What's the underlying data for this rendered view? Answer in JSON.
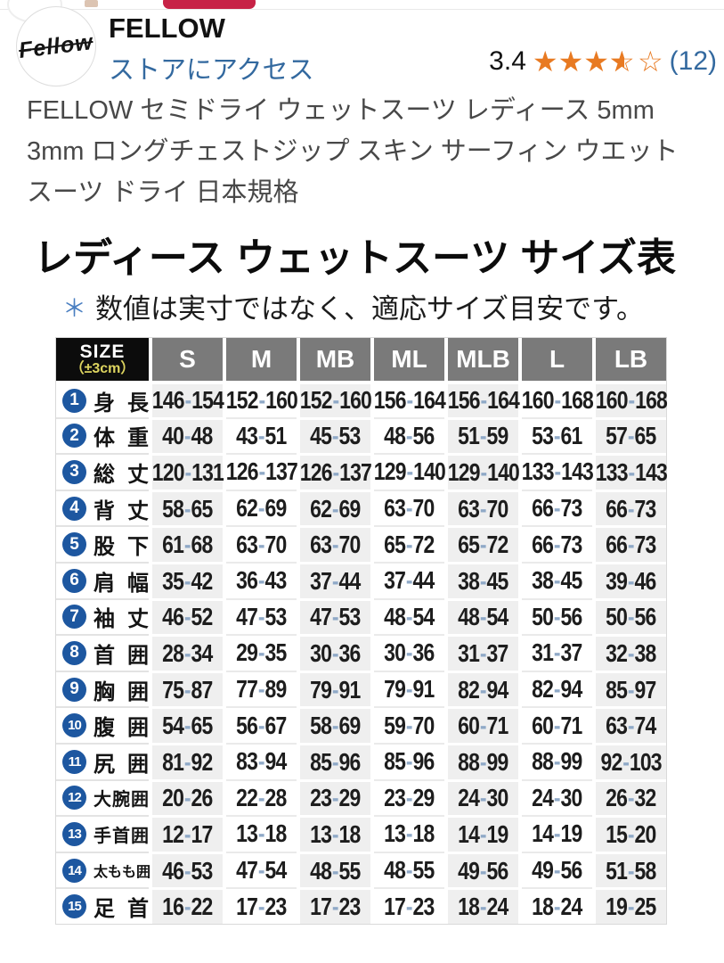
{
  "top_bar": {
    "red_tab_color": "#c72246"
  },
  "brand": {
    "logo_text": "Fellow",
    "name": "FELLOW",
    "store_link": "ストアにアクセス",
    "link_color": "#33699f",
    "rating": {
      "value": "3.4",
      "count": "(12)",
      "stars_full": 3,
      "stars_half": 1,
      "stars_empty": 1,
      "star_color": "#e87a22"
    }
  },
  "product": {
    "title_lines": [
      "FELLOW セミドライ ウェットスーツ レディース 5mm",
      "3mm ロングチェストジップ スキン サーフィン ウエット",
      "スーツ ドライ 日本規格"
    ]
  },
  "size_chart": {
    "heading": "レディース ウェットスーツ サイズ表",
    "note_mark": "＊",
    "note_text": "数値は実寸ではなく、適応サイズ目安です。",
    "colors": {
      "header_bg": "#7a7a7a",
      "corner_bg": "#0c0c0c",
      "corner_tolerance_color": "#ddd45f",
      "row_badge_color": "#1d57a0",
      "shade_column_bg": "#efefef",
      "dash_color": "#8fa9c7"
    },
    "table": {
      "corner": {
        "line1": "SIZE",
        "line2": "（±3cm）"
      },
      "columns": [
        "S",
        "M",
        "MB",
        "ML",
        "MLB",
        "L",
        "LB"
      ],
      "rows": [
        {
          "num": "1",
          "label": "身長",
          "values": [
            "146-154",
            "152-160",
            "152-160",
            "156-164",
            "156-164",
            "160-168",
            "160-168"
          ]
        },
        {
          "num": "2",
          "label": "体重",
          "values": [
            "40-48",
            "43-51",
            "45-53",
            "48-56",
            "51-59",
            "53-61",
            "57-65"
          ]
        },
        {
          "num": "3",
          "label": "総丈",
          "values": [
            "120-131",
            "126-137",
            "126-137",
            "129-140",
            "129-140",
            "133-143",
            "133-143"
          ]
        },
        {
          "num": "4",
          "label": "背丈",
          "values": [
            "58-65",
            "62-69",
            "62-69",
            "63-70",
            "63-70",
            "66-73",
            "66-73"
          ]
        },
        {
          "num": "5",
          "label": "股下",
          "values": [
            "61-68",
            "63-70",
            "63-70",
            "65-72",
            "65-72",
            "66-73",
            "66-73"
          ]
        },
        {
          "num": "6",
          "label": "肩幅",
          "values": [
            "35-42",
            "36-43",
            "37-44",
            "37-44",
            "38-45",
            "38-45",
            "39-46"
          ]
        },
        {
          "num": "7",
          "label": "袖丈",
          "values": [
            "46-52",
            "47-53",
            "47-53",
            "48-54",
            "48-54",
            "50-56",
            "50-56"
          ]
        },
        {
          "num": "8",
          "label": "首囲",
          "values": [
            "28-34",
            "29-35",
            "30-36",
            "30-36",
            "31-37",
            "31-37",
            "32-38"
          ]
        },
        {
          "num": "9",
          "label": "胸囲",
          "values": [
            "75-87",
            "77-89",
            "79-91",
            "79-91",
            "82-94",
            "82-94",
            "85-97"
          ]
        },
        {
          "num": "10",
          "label": "腹囲",
          "values": [
            "54-65",
            "56-67",
            "58-69",
            "59-70",
            "60-71",
            "60-71",
            "63-74"
          ]
        },
        {
          "num": "11",
          "label": "尻囲",
          "values": [
            "81-92",
            "83-94",
            "85-96",
            "85-96",
            "88-99",
            "88-99",
            "92-103"
          ]
        },
        {
          "num": "12",
          "label": "大腕囲",
          "values": [
            "20-26",
            "22-28",
            "23-29",
            "23-29",
            "24-30",
            "24-30",
            "26-32"
          ]
        },
        {
          "num": "13",
          "label": "手首囲",
          "values": [
            "12-17",
            "13-18",
            "13-18",
            "13-18",
            "14-19",
            "14-19",
            "15-20"
          ]
        },
        {
          "num": "14",
          "label": "太もも囲",
          "values": [
            "46-53",
            "47-54",
            "48-55",
            "48-55",
            "49-56",
            "49-56",
            "51-58"
          ]
        },
        {
          "num": "15",
          "label": "足首",
          "values": [
            "16-22",
            "17-23",
            "17-23",
            "17-23",
            "18-24",
            "18-24",
            "19-25"
          ]
        }
      ]
    }
  }
}
